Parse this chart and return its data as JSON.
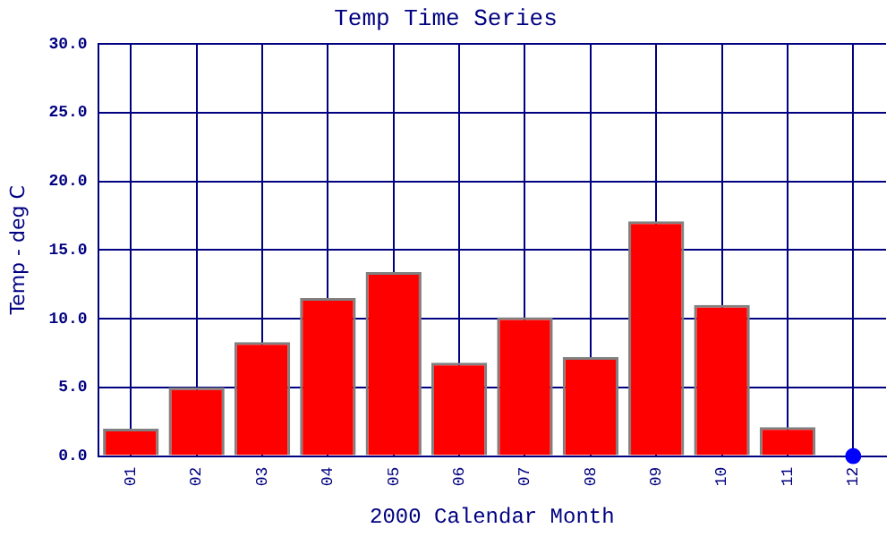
{
  "chart_data": {
    "type": "bar",
    "title": "Temp Time Series",
    "xlabel": "2000 Calendar Month",
    "ylabel": "Temp - deg C",
    "categories": [
      "01",
      "02",
      "03",
      "04",
      "05",
      "06",
      "07",
      "08",
      "09",
      "10",
      "11",
      "12"
    ],
    "series": [
      {
        "color": "#ff0000",
        "values": [
          2.0,
          5.0,
          8.3,
          11.5,
          13.4,
          6.8,
          10.1,
          7.2,
          17.1,
          11.0,
          2.1,
          null
        ]
      },
      {
        "type": "scatter",
        "color": "#0000ff",
        "x": [
          "12"
        ],
        "values": [
          0
        ],
        "marker": "circle"
      }
    ],
    "ylim": [
      0,
      30
    ],
    "yticks": [
      {
        "value": 0,
        "label": "0.0"
      },
      {
        "value": 5,
        "label": "5.0"
      },
      {
        "value": 10,
        "label": "10.0"
      },
      {
        "value": 15,
        "label": "15.0"
      },
      {
        "value": 20,
        "label": "20.0"
      },
      {
        "value": 25,
        "label": "25.0"
      },
      {
        "value": 30,
        "label": "30.0"
      }
    ],
    "grid": true,
    "legend": false
  }
}
